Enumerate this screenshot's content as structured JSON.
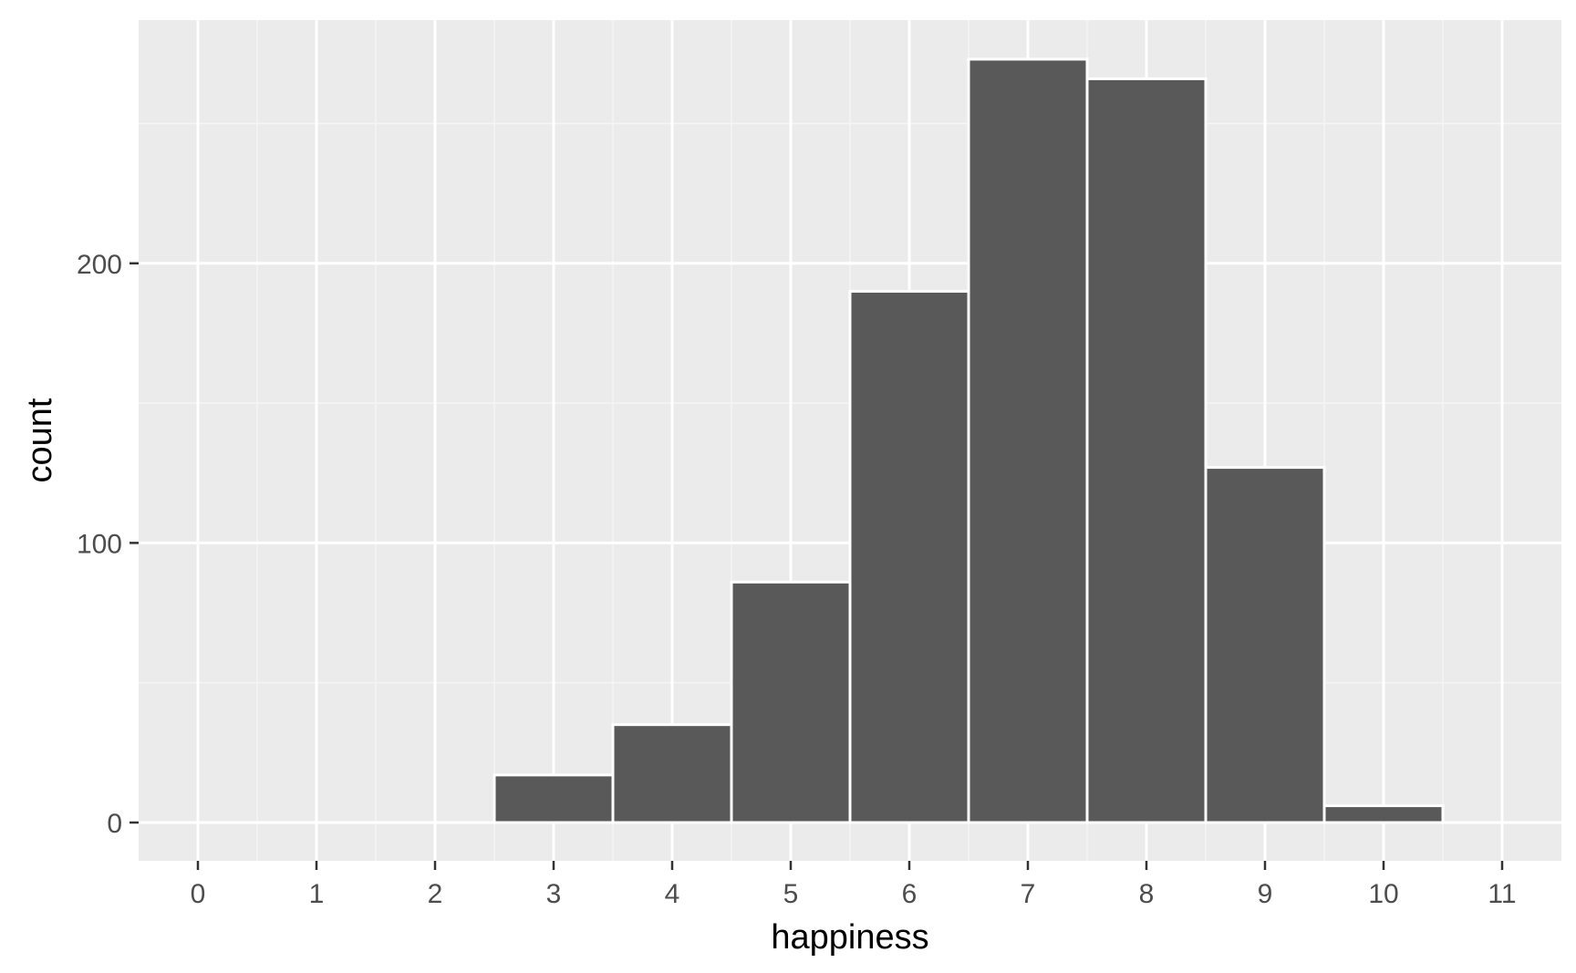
{
  "chart_data": {
    "type": "bar",
    "title": "",
    "xlabel": "happiness",
    "ylabel": "count",
    "x_ticks": [
      "0",
      "1",
      "2",
      "3",
      "4",
      "5",
      "6",
      "7",
      "8",
      "9",
      "10",
      "11"
    ],
    "y_ticks": [
      "0",
      "100",
      "200"
    ],
    "xlim": [
      -0.5,
      11.5
    ],
    "ylim": [
      -13.7,
      287
    ],
    "bins": [
      3,
      4,
      5,
      6,
      7,
      8,
      9,
      10
    ],
    "values": [
      17,
      35,
      86,
      190,
      273,
      266,
      127,
      6
    ],
    "grid": true,
    "legend": "none",
    "colors": {
      "panel_background": "#ebebeb",
      "grid_major": "#ffffff",
      "grid_minor": "#f5f5f5",
      "bar_fill": "#595959",
      "bar_outline": "#ffffff",
      "tick_text": "#4d4d4d",
      "axis_title": "#000000",
      "tick_mark": "#333333"
    }
  }
}
